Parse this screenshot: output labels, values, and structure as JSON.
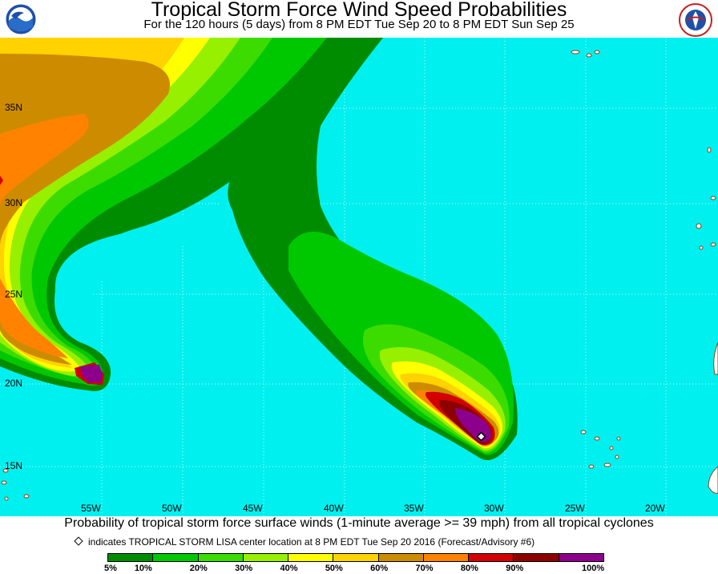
{
  "header": {
    "title": "Tropical Storm Force Wind Speed Probabilities",
    "subtitle": "For the 120 hours (5 days) from 8 PM EDT Tue Sep 20 to 8 PM EDT Sun Sep 25"
  },
  "logos": {
    "left": "noaa-logo",
    "right": "national-weather-service-logo"
  },
  "map": {
    "ocean_color": "#00f0f0",
    "lat_labels": [
      "35N",
      "30N",
      "25N",
      "20N",
      "15N"
    ],
    "lon_labels": [
      "55W",
      "50W",
      "45W",
      "40W",
      "35W",
      "30W",
      "25W",
      "20W"
    ],
    "storm_marker": "tropical-storm-lisa-center"
  },
  "footer": {
    "caption": "Probability of tropical storm force surface winds (1-minute average >= 39 mph) from all tropical cyclones",
    "legend_note": "indicates TROPICAL STORM LISA center location at 8 PM EDT Tue Sep 20 2016 (Forecast/Advisory #6)",
    "scale_labels": [
      "5%",
      "10%",
      "20%",
      "30%",
      "40%",
      "50%",
      "60%",
      "70%",
      "80%",
      "90%",
      "100%"
    ],
    "scale_colors": [
      "#008c00",
      "#00c800",
      "#3cdc00",
      "#96f000",
      "#ffff00",
      "#ffd200",
      "#cd8c00",
      "#ff8200",
      "#d20000",
      "#8c0000",
      "#8c008c"
    ]
  }
}
